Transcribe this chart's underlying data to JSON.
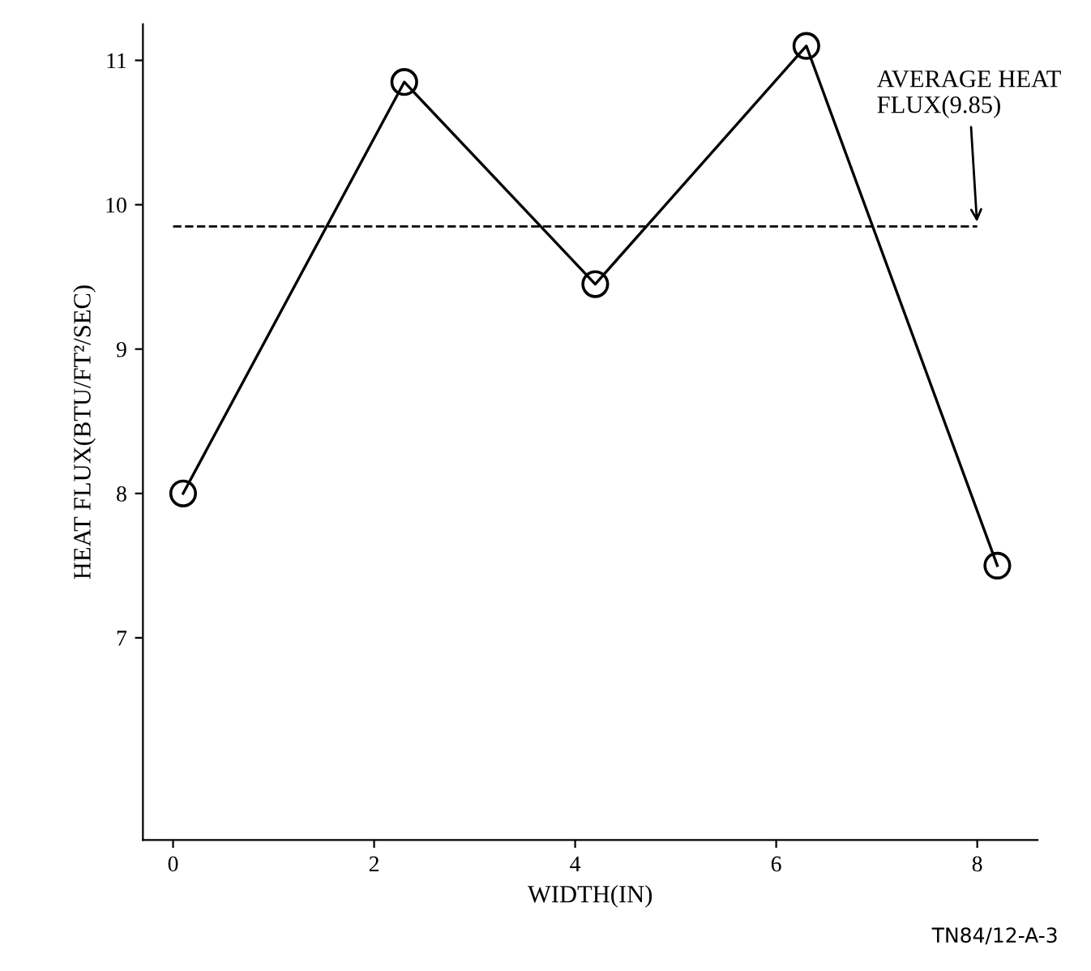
{
  "chart_data": {
    "type": "line",
    "xlabel": "WIDTH(IN)",
    "ylabel": "HEAT FLUX(BTU/FT²/SEC)",
    "x": [
      0.1,
      2.3,
      4.2,
      6.3,
      8.2
    ],
    "series": [
      {
        "color": "#000000",
        "values": [
          8.0,
          10.85,
          9.45,
          11.1,
          7.5
        ]
      }
    ],
    "xlim": [
      -0.3,
      8.6
    ],
    "ylim": [
      5.6,
      11.25
    ],
    "xticks": [
      0,
      2,
      4,
      6,
      8
    ],
    "yticks": [
      7,
      8,
      9,
      10,
      11
    ],
    "marker": "circle",
    "line_style": "solid",
    "grid": false,
    "legend": false,
    "ref_lines": [
      {
        "axis": "y",
        "value": 9.85,
        "label": "AVERAGE HEAT\nFLUX(9.85)",
        "color": "#000000",
        "line_style": "dashed"
      }
    ],
    "annotations": [
      "TN84/12-A-3"
    ]
  }
}
